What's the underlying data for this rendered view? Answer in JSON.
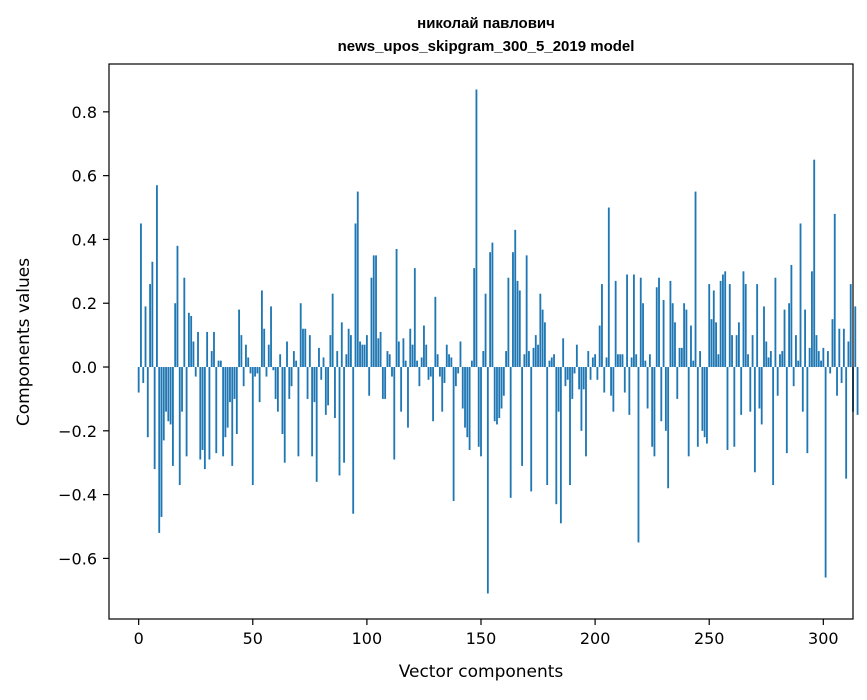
{
  "chart_data": {
    "type": "bar",
    "title": "николай павлович",
    "subtitle": "news_upos_skipgram_300_5_2019 model",
    "xlabel": "Vector components",
    "ylabel": "Components values",
    "xlim": [
      -13,
      313
    ],
    "ylim": [
      -0.79,
      0.95
    ],
    "xticks": [
      0,
      50,
      100,
      150,
      200,
      250,
      300
    ],
    "yticks": [
      -0.6,
      -0.4,
      -0.2,
      0.0,
      0.2,
      0.4,
      0.6,
      0.8
    ],
    "xtick_labels": [
      "0",
      "50",
      "100",
      "150",
      "200",
      "250",
      "300"
    ],
    "ytick_labels": [
      "−0.6",
      "−0.4",
      "−0.2",
      "0.0",
      "0.2",
      "0.4",
      "0.6",
      "0.8"
    ],
    "grid": false,
    "legend": "none",
    "bar_color": "#1f77b4",
    "values": [
      -0.08,
      0.45,
      -0.05,
      0.19,
      -0.22,
      0.26,
      0.33,
      -0.32,
      0.57,
      -0.52,
      -0.47,
      -0.23,
      -0.14,
      -0.17,
      -0.18,
      -0.31,
      0.2,
      0.38,
      -0.37,
      -0.14,
      0.28,
      -0.28,
      0.17,
      0.16,
      0.08,
      -0.03,
      0.11,
      -0.29,
      -0.26,
      -0.32,
      0.11,
      -0.29,
      0.05,
      0.11,
      -0.27,
      0.02,
      0.02,
      -0.28,
      -0.22,
      -0.19,
      -0.11,
      -0.31,
      -0.1,
      -0.21,
      0.18,
      0.1,
      -0.06,
      0.07,
      0.03,
      -0.02,
      -0.37,
      -0.03,
      -0.02,
      -0.11,
      0.24,
      0.12,
      -0.03,
      0.07,
      0.19,
      -0.01,
      -0.1,
      -0.14,
      0.04,
      -0.21,
      -0.3,
      0.08,
      -0.1,
      -0.06,
      0.05,
      0.02,
      -0.28,
      0.2,
      0.12,
      0.12,
      -0.1,
      0.1,
      -0.28,
      -0.11,
      -0.36,
      0.06,
      -0.04,
      0.03,
      -0.15,
      -0.12,
      0.1,
      0.23,
      -0.16,
      0.05,
      -0.34,
      0.14,
      -0.3,
      0.04,
      0.12,
      0.1,
      -0.46,
      0.45,
      0.55,
      0.08,
      0.07,
      0.07,
      0.1,
      -0.09,
      0.28,
      0.35,
      0.35,
      0.09,
      0.11,
      -0.1,
      -0.1,
      0.05,
      0.04,
      -0.03,
      -0.29,
      0.37,
      0.08,
      -0.14,
      0.09,
      0.02,
      -0.19,
      0.12,
      0.07,
      0.31,
      0.02,
      -0.06,
      0.03,
      0.13,
      0.07,
      -0.04,
      -0.03,
      -0.17,
      0.22,
      0.04,
      -0.03,
      -0.14,
      -0.05,
      0.07,
      0.04,
      0.03,
      -0.42,
      -0.06,
      -0.02,
      0.08,
      -0.13,
      -0.19,
      -0.22,
      -0.26,
      0.02,
      0.31,
      0.87,
      -0.25,
      -0.28,
      0.05,
      0.23,
      -0.71,
      0.36,
      0.39,
      -0.17,
      -0.18,
      -0.16,
      -0.13,
      -0.09,
      0.05,
      0.28,
      -0.41,
      0.36,
      0.43,
      0.27,
      0.24,
      -0.31,
      0.04,
      0.35,
      0.05,
      -0.39,
      0.06,
      0.1,
      0.07,
      0.23,
      0.18,
      0.14,
      -0.37,
      0.02,
      0.03,
      0.04,
      -0.43,
      -0.14,
      -0.49,
      0.09,
      -0.06,
      -0.04,
      -0.37,
      -0.1,
      -0.02,
      0.07,
      -0.07,
      -0.2,
      -0.07,
      -0.28,
      0.05,
      -0.04,
      0.03,
      0.04,
      -0.04,
      0.13,
      0.26,
      -0.08,
      0.03,
      0.5,
      -0.09,
      -0.14,
      0.27,
      0.04,
      0.04,
      0.04,
      -0.08,
      0.29,
      -0.15,
      0.03,
      0.29,
      0.04,
      -0.55,
      0.28,
      0.2,
      0.02,
      -0.13,
      0.04,
      -0.25,
      -0.28,
      0.25,
      0.28,
      -0.17,
      0.21,
      -0.2,
      -0.38,
      0.27,
      0.2,
      0.14,
      -0.1,
      0.06,
      0.06,
      0.2,
      0.18,
      -0.28,
      0.13,
      0.02,
      0.55,
      -0.25,
      0.05,
      -0.2,
      -0.22,
      -0.24,
      0.26,
      0.15,
      0.24,
      0.14,
      0.04,
      0.27,
      0.29,
      0.3,
      -0.26,
      0.26,
      0.1,
      -0.25,
      0.1,
      0.14,
      -0.15,
      0.3,
      0.26,
      0.04,
      -0.14,
      0.1,
      -0.33,
      0.26,
      -0.13,
      -0.18,
      0.19,
      0.08,
      0.03,
      0.05,
      -0.37,
      0.28,
      -0.09,
      0.04,
      0.05,
      0.18,
      -0.27,
      0.2,
      0.32,
      -0.06,
      0.1,
      0.02,
      0.45,
      -0.14,
      0.18,
      -0.27,
      0.06,
      0.3,
      0.65,
      0.1,
      0.05,
      0.02,
      0.06,
      -0.66,
      0.05,
      -0.02,
      0.15,
      0.48,
      -0.09,
      0.12,
      -0.05,
      0.12,
      -0.35,
      0.08,
      0.26,
      -0.14,
      0.19,
      -0.15
    ]
  }
}
